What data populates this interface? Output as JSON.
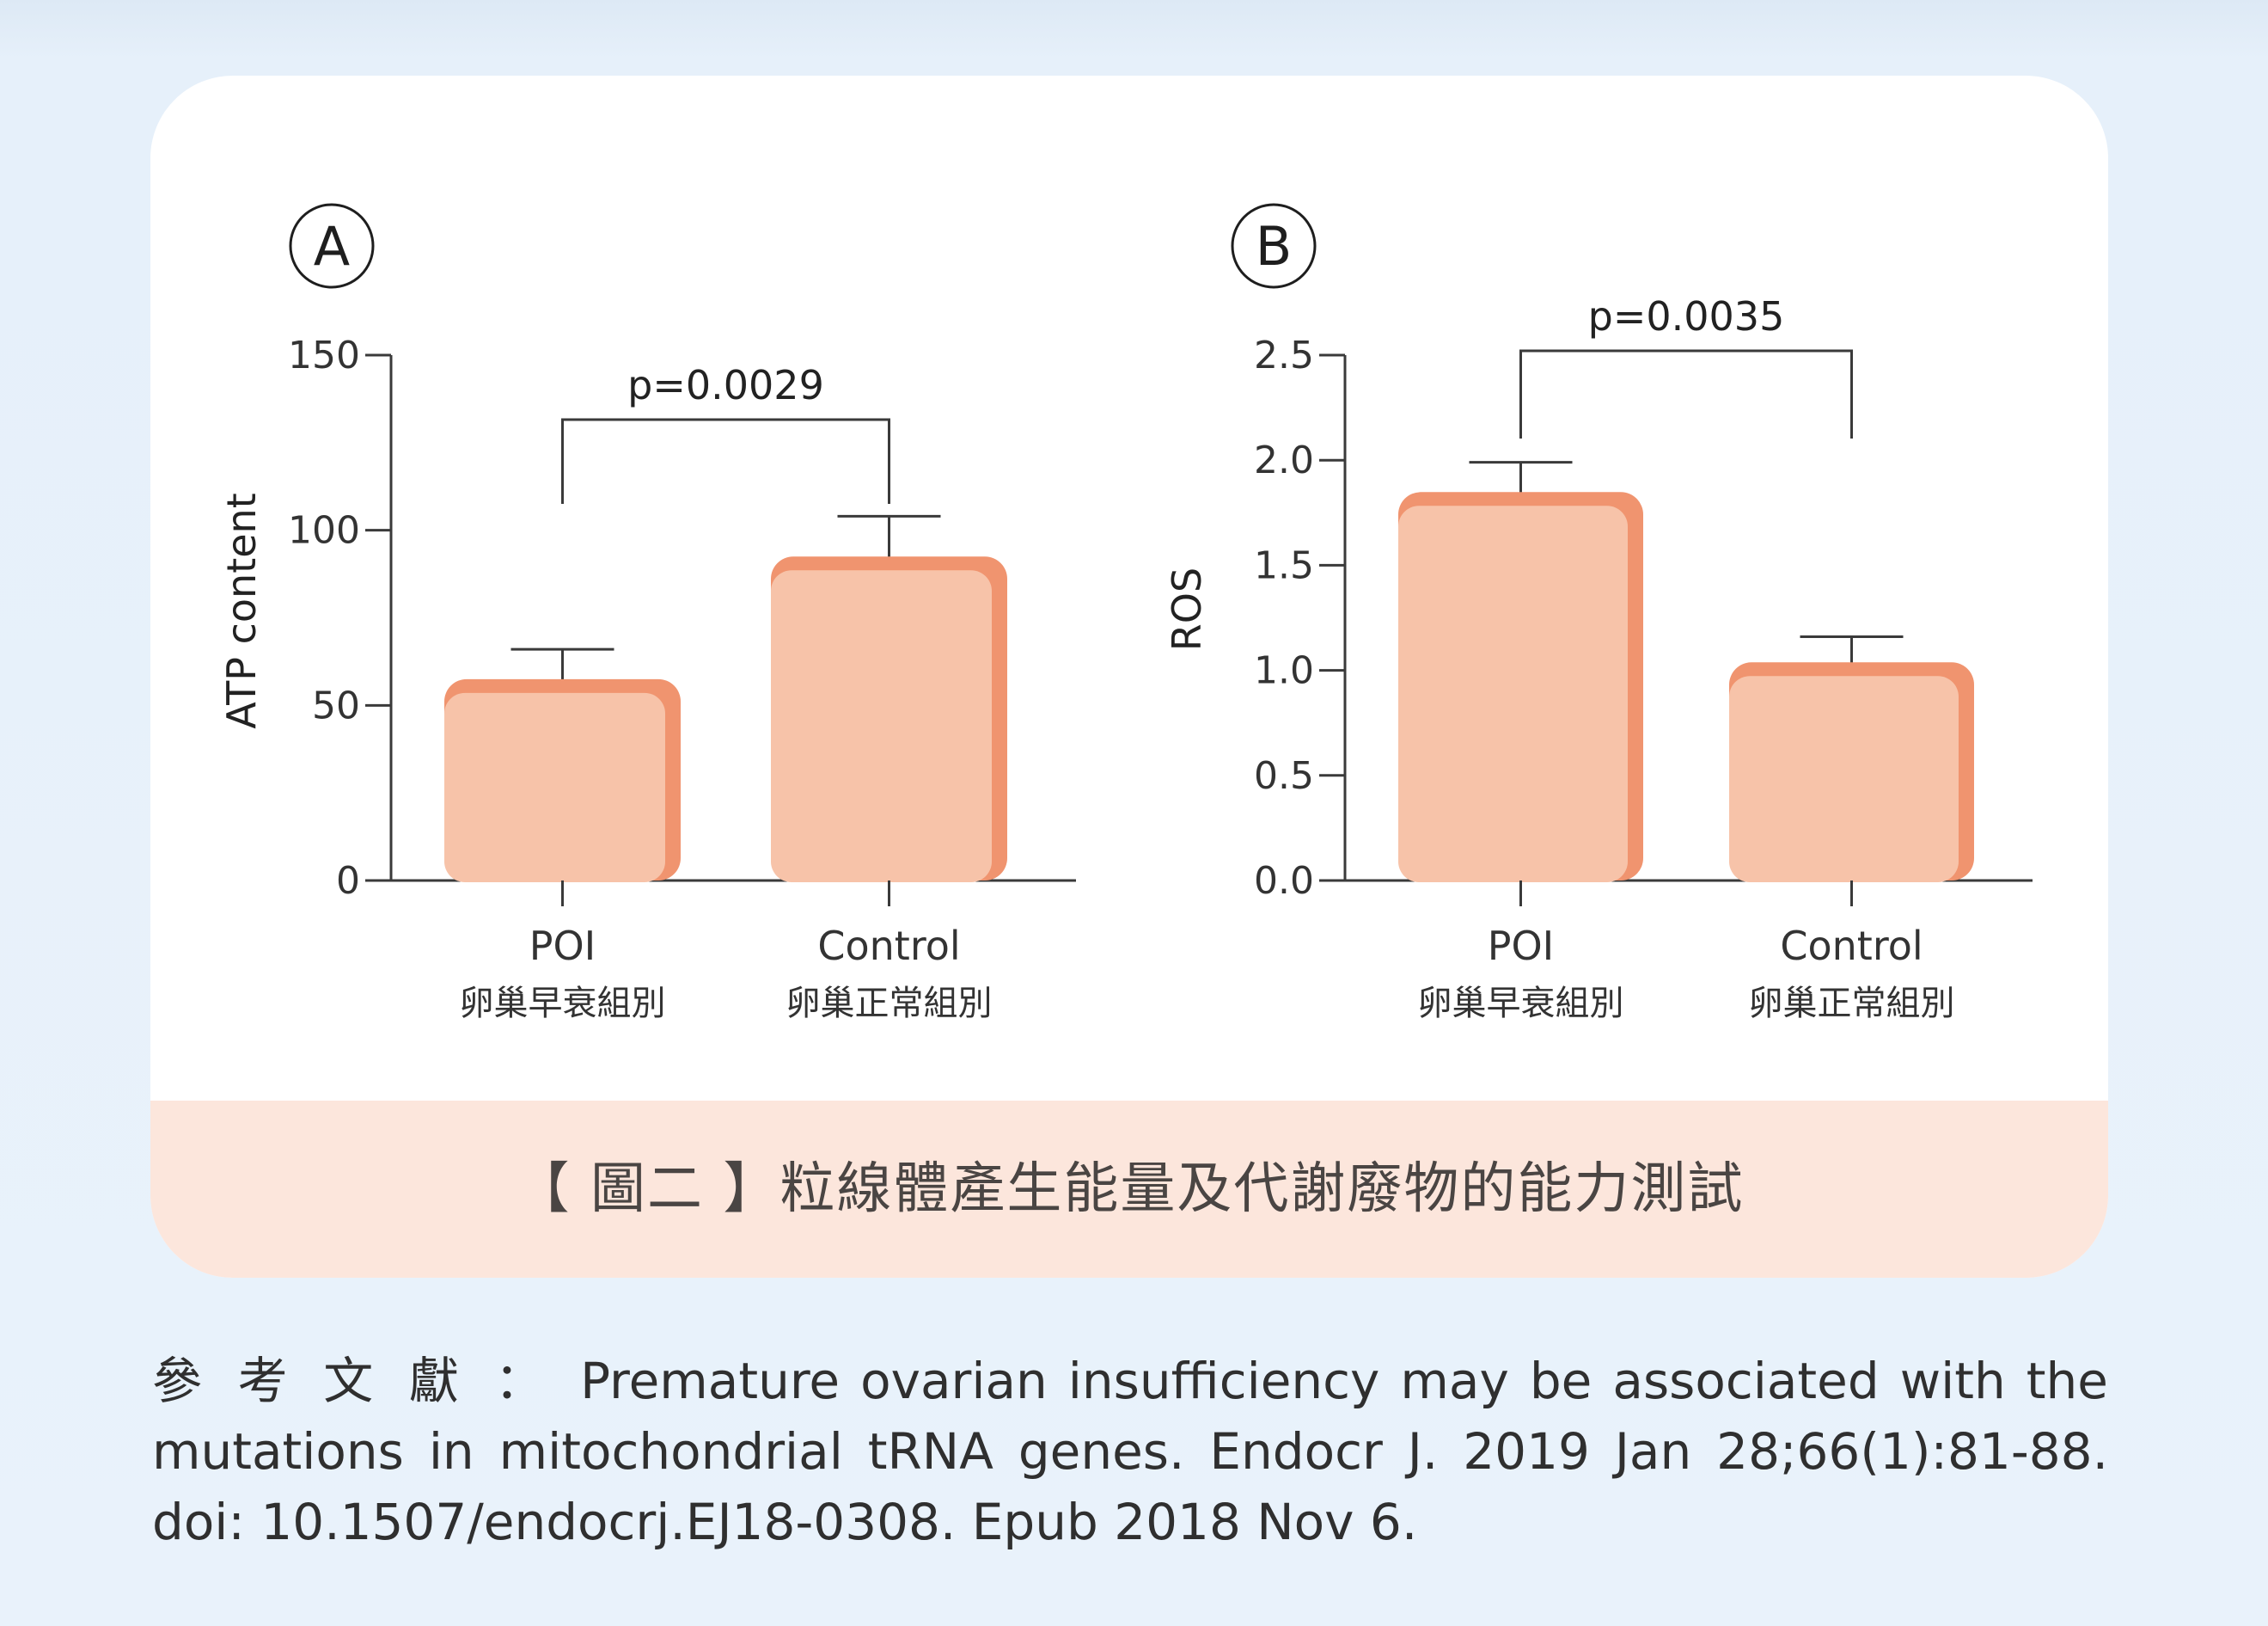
{
  "chart_data": [
    {
      "type": "bar",
      "panel_label": "A",
      "categories": [
        "POI",
        "Control"
      ],
      "category_sublabels": [
        "卵巢早衰組別",
        "卵巢正常組別"
      ],
      "values": [
        57,
        92
      ],
      "errors": [
        9,
        12
      ],
      "ylabel": "ATP content",
      "ylim": [
        0,
        150
      ],
      "yticks": [
        "0",
        "50",
        "100",
        "150"
      ],
      "significance": "p=0.0029",
      "bar_color": "#f7c3a9",
      "bar_side_color": "#f0946f"
    },
    {
      "type": "bar",
      "panel_label": "B",
      "categories": [
        "POI",
        "Control"
      ],
      "category_sublabels": [
        "卵巢早衰組別",
        "卵巢正常組別"
      ],
      "values": [
        1.84,
        1.03
      ],
      "errors": [
        0.15,
        0.13
      ],
      "ylabel": "ROS",
      "ylim": [
        0,
        2.5
      ],
      "yticks": [
        "0.0",
        "0.5",
        "1.0",
        "1.5",
        "2.0",
        "2.5"
      ],
      "significance": "p=0.0035",
      "bar_color": "#f7c3a9",
      "bar_side_color": "#f0946f"
    }
  ],
  "caption": "【 圖二 】粒線體產生能量及代謝廢物的能力測試",
  "reference": {
    "label": "參考文獻：",
    "text": "Premature ovarian insufficiency may be associated with the mutations in mitochondrial tRNA genes. Endocr J. 2019 Jan 28;66(1):81-88. doi: 10.1507/endocrj.EJ18-0308. Epub 2018 Nov 6."
  }
}
